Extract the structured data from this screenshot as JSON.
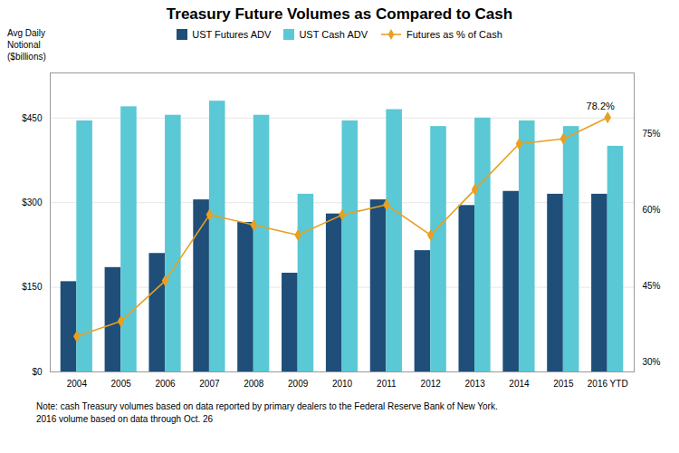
{
  "chart_data": {
    "type": "bar",
    "title": "Treasury Future Volumes as Compared to Cash",
    "ylabel": "Avg Daily\nNotional\n($billions)",
    "note": "Note: cash Treasury volumes based on data reported by primary dealers to the Federal Reserve Bank of New York.\n2016 volume based on data through Oct. 26",
    "categories": [
      "2004",
      "2005",
      "2006",
      "2007",
      "2008",
      "2009",
      "2010",
      "2011",
      "2012",
      "2013",
      "2014",
      "2015",
      "2016 YTD"
    ],
    "series": [
      {
        "name": "UST Futures ADV",
        "type": "bar",
        "color": "#1F4E79",
        "values": [
          160,
          185,
          210,
          305,
          265,
          175,
          280,
          305,
          215,
          295,
          320,
          315,
          315
        ]
      },
      {
        "name": "UST Cash ADV",
        "type": "bar",
        "color": "#5BC8D5",
        "values": [
          445,
          470,
          455,
          480,
          455,
          315,
          445,
          465,
          435,
          450,
          445,
          435,
          400
        ]
      },
      {
        "name": "Futures as % of Cash",
        "type": "line",
        "axis": "y2",
        "color": "#E8A020",
        "marker": "diamond",
        "values": [
          35,
          38,
          46,
          59,
          57,
          55,
          59,
          61,
          55,
          64,
          73,
          74,
          78.2
        ]
      }
    ],
    "ylim": [
      0,
      530
    ],
    "yticks": [
      {
        "value": 0,
        "label": "$0"
      },
      {
        "value": 150,
        "label": "$150"
      },
      {
        "value": 300,
        "label": "$300"
      },
      {
        "value": 450,
        "label": "$450"
      }
    ],
    "y2lim": [
      28,
      87
    ],
    "y2ticks": [
      {
        "value": 30,
        "label": "30%"
      },
      {
        "value": 45,
        "label": "45%"
      },
      {
        "value": 60,
        "label": "60%"
      },
      {
        "value": 75,
        "label": "75%"
      }
    ],
    "annotations": [
      {
        "text": "78.2%",
        "x": "2016 YTD",
        "y": 78.2,
        "axis": "y2"
      }
    ],
    "grid": true,
    "legend": "top"
  }
}
